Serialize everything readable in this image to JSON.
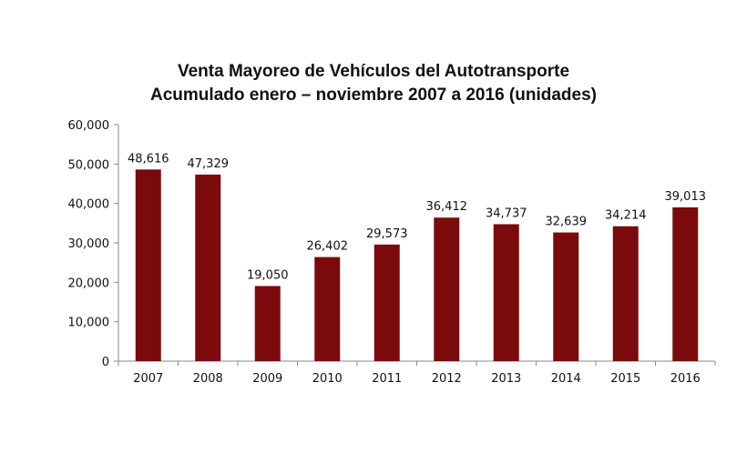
{
  "chart_data": {
    "type": "bar",
    "title": "Venta Mayoreo de Vehículos del Autotransporte",
    "subtitle": "Acumulado enero – noviembre 2007 a 2016 (unidades)",
    "xlabel": "",
    "ylabel": "",
    "categories": [
      "2007",
      "2008",
      "2009",
      "2010",
      "2011",
      "2012",
      "2013",
      "2014",
      "2015",
      "2016"
    ],
    "values": [
      48616,
      47329,
      19050,
      26402,
      29573,
      36412,
      34737,
      32639,
      34214,
      39013
    ],
    "data_labels": [
      "48,616",
      "47,329",
      "19,050",
      "26,402",
      "29,573",
      "36,412",
      "34,737",
      "32,639",
      "34,214",
      "39,013"
    ],
    "ylim": [
      0,
      60000
    ],
    "yticks": [
      0,
      10000,
      20000,
      30000,
      40000,
      50000,
      60000
    ],
    "ytick_labels": [
      "0",
      "10,000",
      "20,000",
      "30,000",
      "40,000",
      "50,000",
      "60,000"
    ],
    "grid": false,
    "legend": "none",
    "colors": {
      "bar": "#7b0a0d",
      "axis": "#888888",
      "text": "#111111"
    }
  }
}
